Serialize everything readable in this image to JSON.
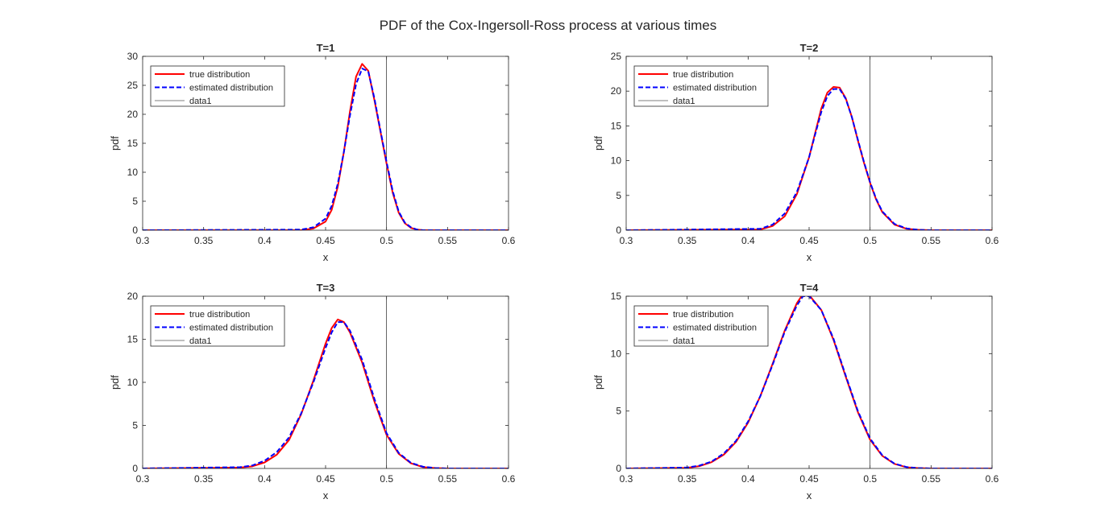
{
  "figure": {
    "title": "PDF of the Cox-Ingersoll-Ross process at various times"
  },
  "colors": {
    "true_series": "#ff0000",
    "estimated_series": "#0000ff",
    "data1_series": "#000000",
    "axes": "#262626",
    "background": "#ffffff"
  },
  "chart_data": [
    {
      "type": "line",
      "title": "T=1",
      "xlabel": "x",
      "ylabel": "pdf",
      "xlim": [
        0.3,
        0.6
      ],
      "ylim": [
        0,
        30
      ],
      "xticks": [
        "0.3",
        "0.35",
        "0.4",
        "0.45",
        "0.5",
        "0.55",
        "0.6"
      ],
      "yticks": [
        "0",
        "5",
        "10",
        "15",
        "20",
        "25",
        "30"
      ],
      "grid": false,
      "legend": "top-left",
      "series": [
        {
          "name": "true distribution",
          "style": "solid",
          "x": [
            0.3,
            0.43,
            0.44,
            0.45,
            0.455,
            0.46,
            0.465,
            0.47,
            0.475,
            0.48,
            0.485,
            0.49,
            0.495,
            0.5,
            0.505,
            0.51,
            0.515,
            0.52,
            0.525,
            0.53,
            0.535,
            0.54,
            0.6
          ],
          "y": [
            0,
            0,
            0.3,
            1.5,
            3.5,
            7.5,
            13.5,
            20.5,
            26.5,
            28.7,
            27.5,
            22.5,
            17,
            11.5,
            6.5,
            3,
            1.2,
            0.4,
            0.1,
            0,
            0,
            0,
            0
          ]
        },
        {
          "name": "estimated distribution",
          "style": "dashed",
          "x": [
            0.3,
            0.43,
            0.44,
            0.45,
            0.455,
            0.46,
            0.465,
            0.47,
            0.475,
            0.48,
            0.485,
            0.49,
            0.495,
            0.5,
            0.505,
            0.51,
            0.515,
            0.52,
            0.525,
            0.53,
            0.535,
            0.54,
            0.6
          ],
          "y": [
            0,
            0.1,
            0.5,
            2,
            4.2,
            8,
            13.5,
            19.8,
            25.2,
            27.9,
            27.4,
            22.8,
            17.2,
            11.8,
            6.8,
            3.2,
            1.3,
            0.5,
            0.1,
            0,
            0,
            0,
            0
          ]
        },
        {
          "name": "data1",
          "style": "thin",
          "x": [
            0.5,
            0.5
          ],
          "y": [
            0,
            30
          ]
        }
      ]
    },
    {
      "type": "line",
      "title": "T=2",
      "xlabel": "x",
      "ylabel": "pdf",
      "xlim": [
        0.3,
        0.6
      ],
      "ylim": [
        0,
        25
      ],
      "xticks": [
        "0.3",
        "0.35",
        "0.4",
        "0.45",
        "0.5",
        "0.55",
        "0.6"
      ],
      "yticks": [
        "0",
        "5",
        "10",
        "15",
        "20",
        "25"
      ],
      "grid": false,
      "legend": "top-left",
      "series": [
        {
          "name": "true distribution",
          "style": "solid",
          "x": [
            0.3,
            0.41,
            0.42,
            0.43,
            0.44,
            0.45,
            0.455,
            0.46,
            0.465,
            0.47,
            0.475,
            0.48,
            0.485,
            0.49,
            0.495,
            0.5,
            0.505,
            0.51,
            0.52,
            0.53,
            0.54,
            0.55,
            0.6
          ],
          "y": [
            0,
            0.1,
            0.6,
            2,
            5.2,
            10.5,
            14,
            17.5,
            19.8,
            20.6,
            20.5,
            19,
            16.3,
            12.9,
            9.7,
            6.8,
            4.4,
            2.6,
            0.8,
            0.2,
            0.05,
            0,
            0
          ]
        },
        {
          "name": "estimated distribution",
          "style": "dashed",
          "x": [
            0.3,
            0.41,
            0.42,
            0.43,
            0.44,
            0.45,
            0.455,
            0.46,
            0.465,
            0.47,
            0.475,
            0.48,
            0.485,
            0.49,
            0.495,
            0.5,
            0.505,
            0.51,
            0.52,
            0.53,
            0.54,
            0.55,
            0.6
          ],
          "y": [
            0,
            0.2,
            0.8,
            2.4,
            5.5,
            10.5,
            13.8,
            17,
            19.3,
            20.3,
            20.3,
            18.9,
            16.3,
            13,
            9.8,
            6.9,
            4.5,
            2.7,
            0.9,
            0.25,
            0.05,
            0,
            0
          ]
        },
        {
          "name": "data1",
          "style": "thin",
          "x": [
            0.5,
            0.5
          ],
          "y": [
            0,
            25
          ]
        }
      ]
    },
    {
      "type": "line",
      "title": "T=3",
      "xlabel": "x",
      "ylabel": "pdf",
      "xlim": [
        0.3,
        0.6
      ],
      "ylim": [
        0,
        20
      ],
      "xticks": [
        "0.3",
        "0.35",
        "0.4",
        "0.45",
        "0.5",
        "0.55",
        "0.6"
      ],
      "yticks": [
        "0",
        "5",
        "10",
        "15",
        "20"
      ],
      "grid": false,
      "legend": "top-left",
      "series": [
        {
          "name": "true distribution",
          "style": "solid",
          "x": [
            0.3,
            0.38,
            0.39,
            0.4,
            0.41,
            0.42,
            0.43,
            0.44,
            0.45,
            0.455,
            0.46,
            0.465,
            0.47,
            0.48,
            0.49,
            0.5,
            0.51,
            0.52,
            0.53,
            0.54,
            0.55,
            0.6
          ],
          "y": [
            0,
            0.1,
            0.25,
            0.7,
            1.6,
            3.3,
            6.3,
            10.2,
            14.5,
            16.3,
            17.3,
            17,
            15.8,
            12.3,
            7.8,
            3.9,
            1.7,
            0.6,
            0.15,
            0.05,
            0,
            0
          ]
        },
        {
          "name": "estimated distribution",
          "style": "dashed",
          "x": [
            0.3,
            0.38,
            0.39,
            0.4,
            0.41,
            0.42,
            0.43,
            0.44,
            0.45,
            0.455,
            0.46,
            0.465,
            0.47,
            0.48,
            0.49,
            0.5,
            0.51,
            0.52,
            0.53,
            0.54,
            0.55,
            0.6
          ],
          "y": [
            0,
            0.15,
            0.35,
            0.9,
            1.9,
            3.6,
            6.4,
            10,
            14,
            15.8,
            17,
            17,
            16,
            12.6,
            8.1,
            4.1,
            1.8,
            0.65,
            0.2,
            0.05,
            0,
            0
          ]
        },
        {
          "name": "data1",
          "style": "thin",
          "x": [
            0.5,
            0.5
          ],
          "y": [
            0,
            20
          ]
        }
      ]
    },
    {
      "type": "line",
      "title": "T=4",
      "xlabel": "x",
      "ylabel": "pdf",
      "xlim": [
        0.3,
        0.6
      ],
      "ylim": [
        0,
        15
      ],
      "xticks": [
        "0.3",
        "0.35",
        "0.4",
        "0.45",
        "0.5",
        "0.55",
        "0.6"
      ],
      "yticks": [
        "0",
        "5",
        "10",
        "15"
      ],
      "grid": false,
      "legend": "top-left",
      "series": [
        {
          "name": "true distribution",
          "style": "solid",
          "x": [
            0.3,
            0.35,
            0.36,
            0.37,
            0.38,
            0.39,
            0.4,
            0.41,
            0.42,
            0.43,
            0.44,
            0.445,
            0.45,
            0.46,
            0.47,
            0.48,
            0.49,
            0.5,
            0.51,
            0.52,
            0.53,
            0.54,
            0.55,
            0.6
          ],
          "y": [
            0,
            0.05,
            0.2,
            0.55,
            1.2,
            2.3,
            4,
            6.3,
            9.1,
            12,
            14.4,
            15.2,
            15.1,
            13.8,
            11.2,
            8,
            4.9,
            2.5,
            1.1,
            0.4,
            0.1,
            0.03,
            0,
            0
          ]
        },
        {
          "name": "estimated distribution",
          "style": "dashed",
          "x": [
            0.3,
            0.35,
            0.36,
            0.37,
            0.38,
            0.39,
            0.4,
            0.41,
            0.42,
            0.43,
            0.44,
            0.445,
            0.45,
            0.46,
            0.47,
            0.48,
            0.49,
            0.5,
            0.51,
            0.52,
            0.53,
            0.54,
            0.55,
            0.6
          ],
          "y": [
            0,
            0.08,
            0.25,
            0.6,
            1.3,
            2.4,
            4.1,
            6.3,
            9,
            11.9,
            14.2,
            15,
            15,
            13.8,
            11.3,
            8.1,
            5,
            2.6,
            1.15,
            0.42,
            0.12,
            0.03,
            0,
            0
          ]
        },
        {
          "name": "data1",
          "style": "thin",
          "x": [
            0.5,
            0.5
          ],
          "y": [
            0,
            15
          ]
        }
      ]
    }
  ]
}
